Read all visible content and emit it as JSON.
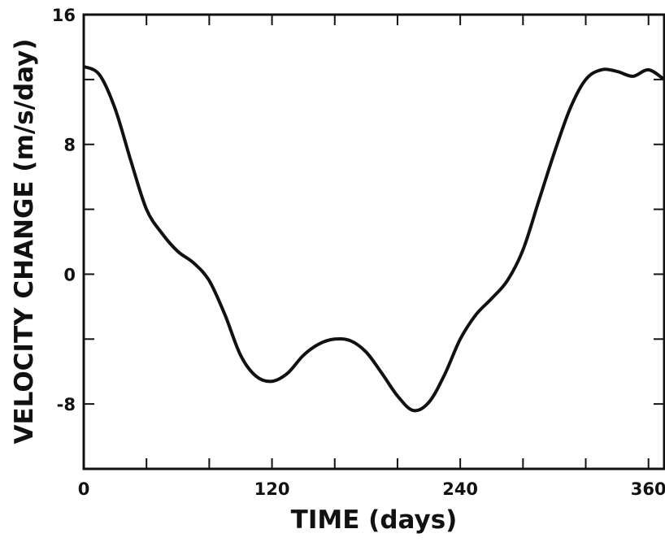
{
  "chart_data": {
    "type": "line",
    "title": "",
    "xlabel": "TIME (days)",
    "ylabel": "VELOCITY CHANGE (m/s/day)",
    "xlim": [
      0,
      370
    ],
    "ylim": [
      -12,
      16
    ],
    "x_ticks": [
      0,
      40,
      80,
      120,
      160,
      200,
      240,
      280,
      320,
      360
    ],
    "x_tick_labels": [
      "0",
      "",
      "",
      "120",
      "",
      "",
      "240",
      "",
      "",
      "360"
    ],
    "y_ticks": [
      -12,
      -8,
      -4,
      0,
      4,
      8,
      12,
      16
    ],
    "y_tick_labels": [
      "",
      "-8",
      "",
      "0",
      "",
      "8",
      "",
      "16"
    ],
    "grid": false,
    "legend": "none",
    "series": [
      {
        "x": [
          0,
          10,
          20,
          30,
          40,
          50,
          60,
          70,
          80,
          90,
          100,
          110,
          120,
          130,
          140,
          150,
          160,
          170,
          180,
          190,
          200,
          210,
          220,
          230,
          240,
          250,
          260,
          270,
          280,
          290,
          300,
          310,
          320,
          330,
          340,
          350,
          360,
          370
        ],
        "y": [
          12.8,
          12.3,
          10.2,
          7.0,
          4.0,
          2.5,
          1.4,
          0.7,
          -0.4,
          -2.5,
          -5.0,
          -6.3,
          -6.6,
          -6.1,
          -5.0,
          -4.3,
          -4.0,
          -4.1,
          -4.8,
          -6.1,
          -7.5,
          -8.4,
          -7.9,
          -6.2,
          -4.0,
          -2.5,
          -1.5,
          -0.4,
          1.5,
          4.5,
          7.5,
          10.2,
          12.0,
          12.6,
          12.5,
          12.2,
          12.6,
          12.0
        ]
      }
    ],
    "line_color": "#111111"
  }
}
